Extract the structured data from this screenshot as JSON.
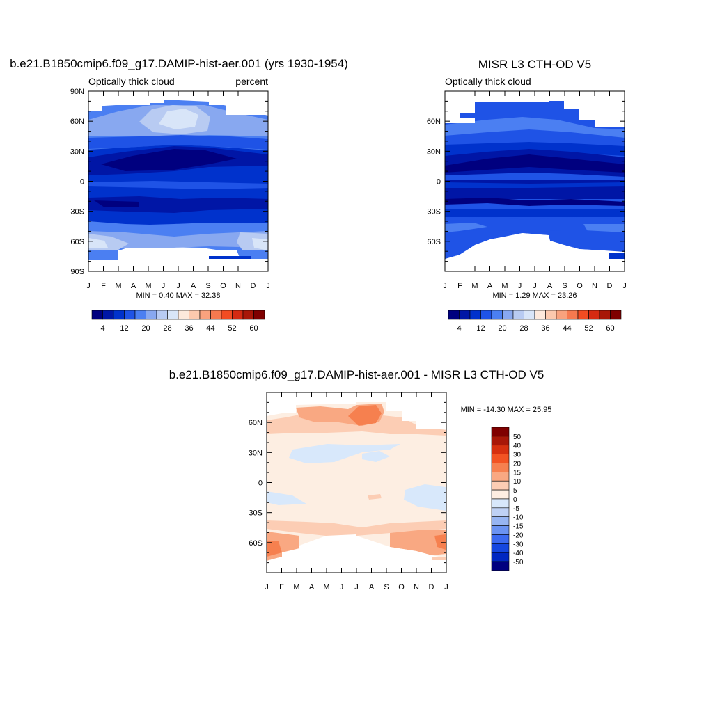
{
  "colors": {
    "seq": [
      "#00007f",
      "#0016a6",
      "#0032cc",
      "#1f53e6",
      "#4b7ff2",
      "#88a8f0",
      "#b8cbf2",
      "#d8e5f8",
      "#fde9dc",
      "#fcc9ae",
      "#f9a27e",
      "#f6794f",
      "#f24c22",
      "#d52a12",
      "#a81708",
      "#7f0000"
    ],
    "diff": [
      "#00007f",
      "#0027c1",
      "#1547e0",
      "#3c6af0",
      "#6b93f2",
      "#97b5f2",
      "#bfd1f4",
      "#d8e8fb",
      "#fdeee2",
      "#fccdb4",
      "#f9a882",
      "#f6804f",
      "#f25322",
      "#d6300f",
      "#a81708",
      "#7f0000"
    ]
  },
  "months": [
    "J",
    "F",
    "M",
    "A",
    "M",
    "J",
    "J",
    "A",
    "S",
    "O",
    "N",
    "D",
    "J"
  ],
  "lat_ticks": [
    "90N",
    "60N",
    "30N",
    "0",
    "30S",
    "60S",
    "90S"
  ],
  "panels": {
    "model": {
      "title": "b.e21.B1850cmip6.f09_g17.DAMIP-hist-aer.001 (yrs 1930-1954)",
      "left_label": "Optically thick cloud",
      "right_label": "percent",
      "stats": "MIN =   0.40 MAX =  32.38"
    },
    "obs": {
      "title": "MISR L3 CTH-OD V5",
      "left_label": "Optically thick cloud",
      "stats": "MIN =   1.29 MAX =  23.26"
    },
    "diff": {
      "title": "b.e21.B1850cmip6.f09_g17.DAMIP-hist-aer.001 - MISR L3 CTH-OD V5",
      "stats": "MIN = -14.30 MAX =  25.95"
    }
  },
  "seq_colorbar_labels": [
    "4",
    "12",
    "20",
    "28",
    "36",
    "44",
    "52",
    "60"
  ],
  "diff_colorbar_labels": [
    "50",
    "40",
    "30",
    "20",
    "15",
    "10",
    "5",
    "0",
    "-5",
    "-10",
    "-15",
    "-20",
    "-30",
    "-40",
    "-50"
  ],
  "chart_data": [
    {
      "type": "heatmap",
      "title": "b.e21.B1850cmip6.f09_g17.DAMIP-hist-aer.001 (yrs 1930-1954)",
      "subtitle": "Optically thick cloud",
      "units": "percent",
      "x": [
        "J",
        "F",
        "M",
        "A",
        "M",
        "J",
        "J",
        "A",
        "S",
        "O",
        "N",
        "D",
        "J"
      ],
      "y_ticks": [
        "90N",
        "60N",
        "30N",
        "0",
        "30S",
        "60S",
        "90S"
      ],
      "ylim": [
        -90,
        90
      ],
      "levels": [
        4,
        8,
        12,
        16,
        20,
        24,
        28,
        32,
        36,
        40,
        44,
        48,
        52,
        56,
        60
      ],
      "min": 0.4,
      "max": 32.38,
      "zonal_profile": [
        {
          "lat": 70,
          "value": 18
        },
        {
          "lat": 50,
          "value": 14
        },
        {
          "lat": 40,
          "value": 12
        },
        {
          "lat": 30,
          "value": 9
        },
        {
          "lat": 20,
          "value": 5
        },
        {
          "lat": 10,
          "value": 8
        },
        {
          "lat": 0,
          "value": 9
        },
        {
          "lat": -10,
          "value": 8
        },
        {
          "lat": -20,
          "value": 4
        },
        {
          "lat": -30,
          "value": 8
        },
        {
          "lat": -40,
          "value": 12
        },
        {
          "lat": -50,
          "value": 18
        },
        {
          "lat": -60,
          "value": 26
        },
        {
          "lat": -70,
          "value": 24
        }
      ]
    },
    {
      "type": "heatmap",
      "title": "MISR L3 CTH-OD V5",
      "subtitle": "Optically thick cloud",
      "x": [
        "J",
        "F",
        "M",
        "A",
        "M",
        "J",
        "J",
        "A",
        "S",
        "O",
        "N",
        "D",
        "J"
      ],
      "y_ticks": [
        "60N",
        "30N",
        "0",
        "30S",
        "60S"
      ],
      "ylim": [
        -90,
        90
      ],
      "levels": [
        4,
        8,
        12,
        16,
        20,
        24,
        28,
        32,
        36,
        40,
        44,
        48,
        52,
        56,
        60
      ],
      "min": 1.29,
      "max": 23.26,
      "zonal_profile": [
        {
          "lat": 70,
          "value": 13
        },
        {
          "lat": 50,
          "value": 12
        },
        {
          "lat": 40,
          "value": 11
        },
        {
          "lat": 30,
          "value": 8
        },
        {
          "lat": 20,
          "value": 4
        },
        {
          "lat": 10,
          "value": 7
        },
        {
          "lat": 0,
          "value": 6
        },
        {
          "lat": -10,
          "value": 7
        },
        {
          "lat": -20,
          "value": 3
        },
        {
          "lat": -30,
          "value": 7
        },
        {
          "lat": -40,
          "value": 10
        },
        {
          "lat": -50,
          "value": 13
        },
        {
          "lat": -60,
          "value": 14
        },
        {
          "lat": -70,
          "value": 15
        }
      ]
    },
    {
      "type": "heatmap",
      "title": "b.e21.B1850cmip6.f09_g17.DAMIP-hist-aer.001 - MISR L3 CTH-OD V5",
      "x": [
        "J",
        "F",
        "M",
        "A",
        "M",
        "J",
        "J",
        "A",
        "S",
        "O",
        "N",
        "D",
        "J"
      ],
      "y_ticks": [
        "60N",
        "30N",
        "0",
        "30S",
        "60S"
      ],
      "ylim": [
        -90,
        90
      ],
      "levels": [
        -50,
        -40,
        -30,
        -20,
        -15,
        -10,
        -5,
        0,
        5,
        10,
        15,
        20,
        30,
        40,
        50
      ],
      "min": -14.3,
      "max": 25.95,
      "zonal_profile": [
        {
          "lat": 70,
          "value": 14
        },
        {
          "lat": 60,
          "value": 8
        },
        {
          "lat": 50,
          "value": 4
        },
        {
          "lat": 30,
          "value": 2
        },
        {
          "lat": 20,
          "value": -2
        },
        {
          "lat": 0,
          "value": 2
        },
        {
          "lat": -20,
          "value": -1
        },
        {
          "lat": -40,
          "value": 4
        },
        {
          "lat": -50,
          "value": 8
        },
        {
          "lat": -60,
          "value": 11
        },
        {
          "lat": -70,
          "value": 8
        }
      ]
    }
  ]
}
